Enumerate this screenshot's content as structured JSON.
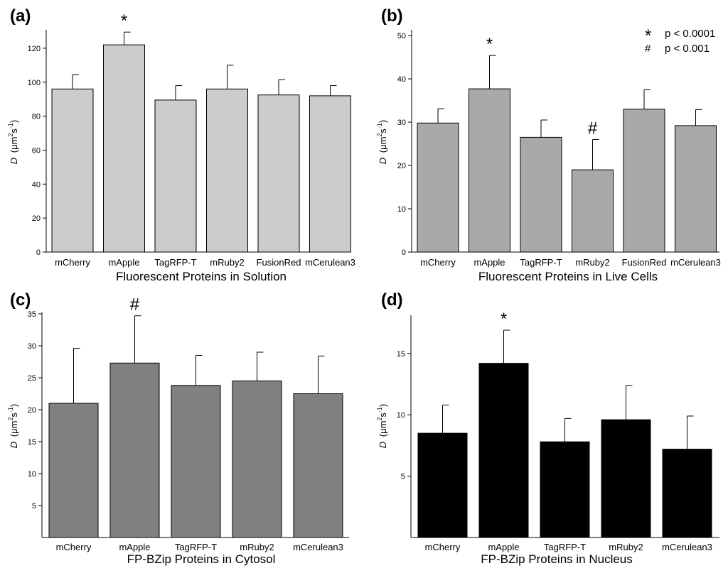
{
  "chart_data": [
    {
      "type": "bar",
      "panel_label": "(a)",
      "categories": [
        "mCherry",
        "mApple",
        "TagRFP-T",
        "mRuby2",
        "FusionRed",
        "mCerulean3"
      ],
      "values": [
        96,
        122,
        89.5,
        96,
        92.5,
        92
      ],
      "errors": [
        8.5,
        7.5,
        8.5,
        14,
        9,
        6
      ],
      "significance": [
        "",
        "*",
        "",
        "",
        "",
        ""
      ],
      "xlabel": "Fluorescent Proteins in Solution",
      "ylabel": {
        "var": "D",
        "open": "(μm",
        "sup2": "2",
        "s": "s",
        "supm1": "-1",
        "close": ")"
      },
      "ylim": [
        0,
        130
      ],
      "yticks": [
        0,
        20,
        40,
        60,
        80,
        100,
        120
      ],
      "bar_color": "#cccccc",
      "legend": []
    },
    {
      "type": "bar",
      "panel_label": "(b)",
      "categories": [
        "mCherry",
        "mApple",
        "TagRFP-T",
        "mRuby2",
        "FusionRed",
        "mCerulean3"
      ],
      "values": [
        29.8,
        37.7,
        26.5,
        19,
        33,
        29.2
      ],
      "errors": [
        3.3,
        7.7,
        4,
        7,
        4.5,
        3.7
      ],
      "significance": [
        "",
        "*",
        "",
        "#",
        "",
        ""
      ],
      "xlabel": "Fluorescent Proteins in Live Cells",
      "ylabel": {
        "var": "D",
        "open": "(μm",
        "sup2": "2",
        "s": "s",
        "supm1": "-1",
        "close": ")"
      },
      "ylim": [
        0,
        51
      ],
      "yticks": [
        0,
        10,
        20,
        30,
        40,
        50
      ],
      "bar_color": "#a9a9a9",
      "legend": [
        {
          "symbol": "*",
          "text": "p < 0.0001"
        },
        {
          "symbol": "#",
          "text": "p < 0.001"
        }
      ]
    },
    {
      "type": "bar",
      "panel_label": "(c)",
      "categories": [
        "mCherry",
        "mApple",
        "TagRFP-T",
        "mRuby2",
        "mCerulean3"
      ],
      "values": [
        21,
        27.3,
        23.8,
        24.5,
        22.5
      ],
      "errors": [
        8.6,
        7.4,
        4.7,
        4.5,
        5.9
      ],
      "significance": [
        "",
        "#",
        "",
        "",
        ""
      ],
      "xlabel": "FP-BZip Proteins in Cytosol",
      "ylabel": {
        "var": "D",
        "open": "(μm",
        "sup2": "2",
        "s": "s",
        "supm1": "-1",
        "close": ")"
      },
      "ylim": [
        0,
        35
      ],
      "yticks": [
        5,
        10,
        15,
        20,
        25,
        30,
        35
      ],
      "bar_color": "#808080",
      "legend": []
    },
    {
      "type": "bar",
      "panel_label": "(d)",
      "categories": [
        "mCherry",
        "mApple",
        "TagRFP-T",
        "mRuby2",
        "mCerulean3"
      ],
      "values": [
        8.5,
        14.2,
        7.8,
        9.6,
        7.2
      ],
      "errors": [
        2.3,
        2.7,
        1.9,
        2.8,
        2.7
      ],
      "significance": [
        "",
        "*",
        "",
        "",
        ""
      ],
      "xlabel": "FP-BZip Proteins in Nucleus",
      "ylabel": {
        "var": "D",
        "open": "(μm",
        "sup2": "2",
        "s": "s",
        "supm1": "-1",
        "close": ")"
      },
      "ylim": [
        0,
        18
      ],
      "yticks": [
        5,
        10,
        15
      ],
      "bar_color": "#000000",
      "legend": []
    }
  ]
}
